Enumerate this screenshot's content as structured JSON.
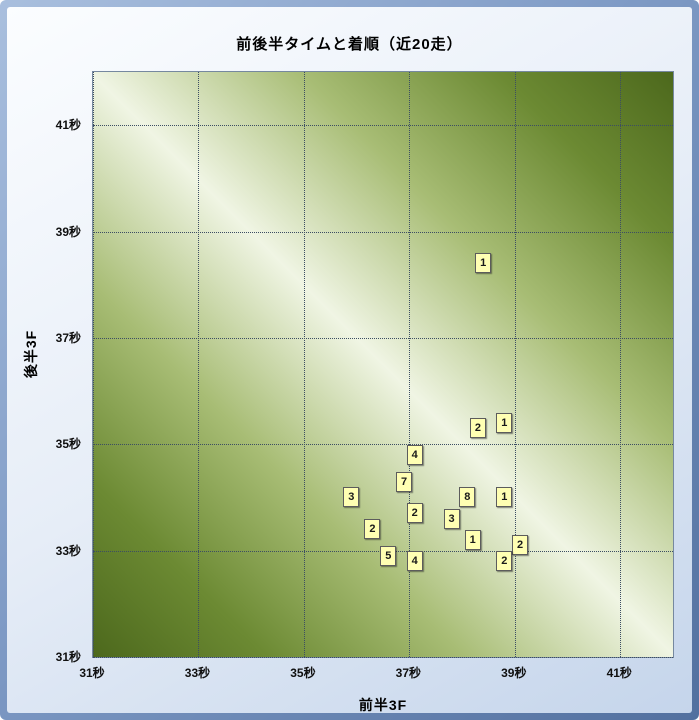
{
  "window": {
    "title": "前後半タイムと着順（近20走）"
  },
  "chart_data": {
    "type": "scatter",
    "title": "前後半タイムと着順（近20走）",
    "xlabel": "前半3F",
    "ylabel": "後半3F",
    "xlim": [
      31,
      42
    ],
    "ylim": [
      31,
      42
    ],
    "grid": true,
    "tick_values": [
      31,
      33,
      35,
      37,
      39,
      41
    ],
    "tick_labels": [
      "31秒",
      "33秒",
      "35秒",
      "37秒",
      "39秒",
      "41秒"
    ],
    "points": [
      {
        "x": 38.4,
        "y": 38.4,
        "label": "1"
      },
      {
        "x": 38.8,
        "y": 35.4,
        "label": "1"
      },
      {
        "x": 38.3,
        "y": 35.3,
        "label": "2"
      },
      {
        "x": 37.1,
        "y": 34.8,
        "label": "4"
      },
      {
        "x": 36.9,
        "y": 34.3,
        "label": "7"
      },
      {
        "x": 35.9,
        "y": 34.0,
        "label": "3"
      },
      {
        "x": 38.1,
        "y": 34.0,
        "label": "8"
      },
      {
        "x": 38.8,
        "y": 34.0,
        "label": "1"
      },
      {
        "x": 37.1,
        "y": 33.7,
        "label": "2"
      },
      {
        "x": 37.8,
        "y": 33.6,
        "label": "3"
      },
      {
        "x": 36.3,
        "y": 33.4,
        "label": "2"
      },
      {
        "x": 38.2,
        "y": 33.2,
        "label": "1"
      },
      {
        "x": 39.1,
        "y": 33.1,
        "label": "2"
      },
      {
        "x": 36.6,
        "y": 32.9,
        "label": "5"
      },
      {
        "x": 37.1,
        "y": 32.8,
        "label": "4"
      },
      {
        "x": 38.8,
        "y": 32.8,
        "label": "2"
      }
    ],
    "colors": {
      "marker_bg": "#ffffb3",
      "marker_border": "#5c5c5c",
      "grid": "#3c4d63",
      "plot_dark": "#4c681c",
      "plot_light": "#f0f5e4",
      "frame_blue": "#7e9ac5",
      "inner_bg": "#e6edf7"
    }
  }
}
